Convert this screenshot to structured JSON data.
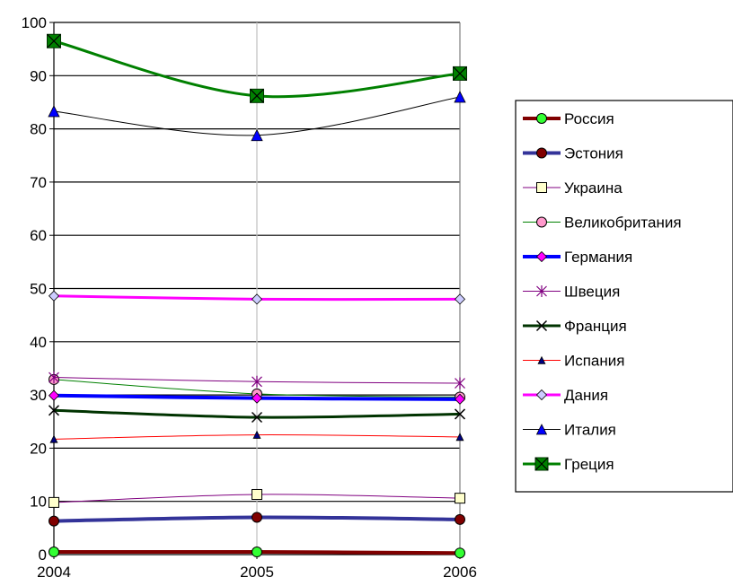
{
  "chart_data": {
    "type": "line",
    "title": "",
    "xlabel": "",
    "ylabel": "",
    "x": [
      "2004",
      "2005",
      "2006"
    ],
    "ylim": [
      0,
      100
    ],
    "yticks": [
      "0",
      "10",
      "20",
      "30",
      "40",
      "50",
      "60",
      "70",
      "80",
      "90",
      "100"
    ],
    "grid": "horizontal major gridlines; vertical line at 2005",
    "legend_position": "right",
    "series": [
      {
        "name": "Россия",
        "values": [
          0.5,
          0.5,
          0.3
        ],
        "color": "#800000",
        "marker": "circle",
        "marker_fill": "#33ff33",
        "width": 4
      },
      {
        "name": "Эстония",
        "values": [
          6.3,
          7.0,
          6.6
        ],
        "color": "#333399",
        "marker": "circle",
        "marker_fill": "#800000",
        "width": 4
      },
      {
        "name": "Украина",
        "values": [
          9.8,
          11.3,
          10.6
        ],
        "color": "#800080",
        "marker": "square",
        "marker_fill": "#ffffcc",
        "width": 1
      },
      {
        "name": "Великобритания",
        "values": [
          32.9,
          30.2,
          29.6
        ],
        "color": "#008000",
        "marker": "circle",
        "marker_fill": "#ff99cc",
        "width": 1
      },
      {
        "name": "Германия",
        "values": [
          29.9,
          29.4,
          29.2
        ],
        "color": "#0000ff",
        "marker": "diamond",
        "marker_fill": "#ff00ff",
        "width": 4
      },
      {
        "name": "Швеция",
        "values": [
          33.3,
          32.5,
          32.2
        ],
        "color": "#800080",
        "marker": "star",
        "marker_fill": "none",
        "width": 1
      },
      {
        "name": "Франция",
        "values": [
          27.1,
          25.8,
          26.4
        ],
        "color": "#003300",
        "marker": "x",
        "marker_fill": "none",
        "width": 3
      },
      {
        "name": "Испания",
        "values": [
          21.7,
          22.5,
          22.1
        ],
        "color": "#ff0000",
        "marker": "triangle-small",
        "marker_fill": "#000080",
        "width": 1
      },
      {
        "name": "Дания",
        "values": [
          48.6,
          48.0,
          48.0
        ],
        "color": "#ff00ff",
        "marker": "diamond",
        "marker_fill": "#ccccff",
        "width": 3
      },
      {
        "name": "Италия",
        "values": [
          83.3,
          78.8,
          86.0
        ],
        "color": "#000000",
        "marker": "triangle",
        "marker_fill": "#0000ff",
        "width": 1
      },
      {
        "name": "Греция",
        "values": [
          96.5,
          86.2,
          90.4
        ],
        "color": "#008000",
        "marker": "square-x",
        "marker_fill": "#008000",
        "width": 3
      }
    ]
  }
}
